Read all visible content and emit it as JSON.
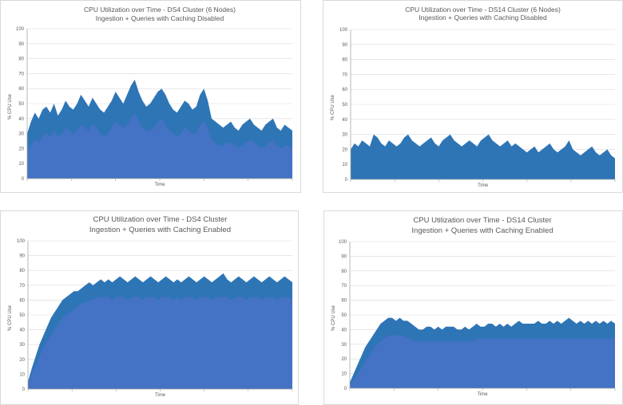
{
  "chart_data": [
    {
      "type": "area",
      "title": "CPU Utilization over Time - DS4 Cluster (6 Nodes)",
      "subtitle": "Ingestion + Queries with Caching Disabled",
      "xlabel": "Time",
      "ylabel": "% CPU Use",
      "ylim": [
        0,
        100
      ],
      "y_ticks": [
        "0",
        "10",
        "20",
        "30",
        "40",
        "50",
        "60",
        "70",
        "80",
        "90",
        "100"
      ],
      "grid": true,
      "series": [
        {
          "color": "#2e75b6",
          "values": [
            30,
            38,
            44,
            40,
            46,
            48,
            44,
            50,
            42,
            46,
            52,
            48,
            46,
            50,
            56,
            52,
            48,
            54,
            50,
            46,
            44,
            48,
            52,
            58,
            54,
            50,
            56,
            62,
            66,
            58,
            52,
            48,
            50,
            54,
            58,
            60,
            56,
            50,
            46,
            44,
            48,
            52,
            50,
            46,
            48,
            56,
            60,
            52,
            40,
            38,
            36,
            34,
            36,
            38,
            34,
            32,
            36,
            38,
            40,
            36,
            34,
            32,
            36,
            38,
            40,
            34,
            32,
            36,
            34,
            32
          ]
        },
        {
          "color": "#4472c4",
          "values": [
            18,
            22,
            26,
            24,
            28,
            30,
            28,
            32,
            28,
            30,
            34,
            32,
            30,
            32,
            36,
            34,
            32,
            36,
            34,
            30,
            28,
            30,
            34,
            38,
            36,
            34,
            36,
            40,
            44,
            38,
            34,
            32,
            32,
            34,
            38,
            40,
            36,
            32,
            30,
            28,
            30,
            34,
            32,
            30,
            30,
            36,
            38,
            34,
            26,
            24,
            22,
            22,
            24,
            24,
            22,
            20,
            22,
            24,
            26,
            24,
            22,
            20,
            22,
            24,
            26,
            22,
            20,
            22,
            22,
            20
          ]
        }
      ]
    },
    {
      "type": "area",
      "title": "CPU Utilization over Time - DS14 Cluster (6 Nodes)",
      "subtitle": "Ingestion + Queries with Caching Disabled",
      "xlabel": "Time",
      "ylabel": "% CPU Use",
      "ylim": [
        0,
        100
      ],
      "y_ticks": [
        "0",
        "10",
        "20",
        "30",
        "40",
        "50",
        "60",
        "70",
        "80",
        "90",
        "100"
      ],
      "grid": true,
      "series": [
        {
          "color": "#2e75b6",
          "values": [
            20,
            24,
            22,
            26,
            24,
            22,
            30,
            28,
            24,
            22,
            26,
            24,
            22,
            24,
            28,
            30,
            26,
            24,
            22,
            24,
            26,
            28,
            24,
            22,
            26,
            28,
            30,
            26,
            24,
            22,
            24,
            26,
            24,
            22,
            26,
            28,
            30,
            26,
            24,
            22,
            24,
            26,
            22,
            24,
            22,
            20,
            18,
            20,
            22,
            18,
            20,
            22,
            24,
            20,
            18,
            20,
            22,
            26,
            20,
            18,
            16,
            18,
            20,
            22,
            18,
            16,
            18,
            20,
            16,
            14
          ]
        }
      ]
    },
    {
      "type": "area",
      "title": "CPU Utilization over Time - DS4 Cluster",
      "subtitle": "Ingestion + Queries with Caching Enabled",
      "xlabel": "Time",
      "ylabel": "% CPU Use",
      "ylim": [
        0,
        100
      ],
      "y_ticks": [
        "0",
        "10",
        "20",
        "30",
        "40",
        "50",
        "60",
        "70",
        "80",
        "90",
        "100"
      ],
      "grid": true,
      "series": [
        {
          "color": "#2e75b6",
          "values": [
            5,
            14,
            22,
            30,
            36,
            42,
            48,
            52,
            56,
            60,
            62,
            64,
            66,
            66,
            68,
            70,
            72,
            70,
            72,
            74,
            72,
            74,
            72,
            74,
            76,
            74,
            72,
            74,
            76,
            74,
            72,
            74,
            76,
            74,
            72,
            74,
            76,
            74,
            72,
            74,
            72,
            74,
            76,
            74,
            72,
            74,
            76,
            74,
            72,
            74,
            76,
            78,
            74,
            72,
            74,
            76,
            74,
            72,
            74,
            76,
            74,
            72,
            74,
            76,
            74,
            72,
            74,
            76,
            74,
            72
          ]
        },
        {
          "color": "#4472c4",
          "values": [
            3,
            10,
            16,
            22,
            28,
            32,
            36,
            40,
            44,
            48,
            50,
            52,
            54,
            56,
            58,
            58,
            60,
            60,
            62,
            62,
            62,
            62,
            60,
            62,
            62,
            62,
            60,
            62,
            62,
            62,
            60,
            62,
            62,
            62,
            60,
            62,
            62,
            62,
            60,
            62,
            60,
            62,
            62,
            62,
            60,
            62,
            62,
            62,
            60,
            62,
            62,
            62,
            62,
            60,
            62,
            62,
            62,
            60,
            62,
            62,
            62,
            60,
            62,
            62,
            62,
            60,
            62,
            62,
            62,
            60
          ]
        }
      ]
    },
    {
      "type": "area",
      "title": "CPU Utilization over Time - DS14 Cluster",
      "subtitle": "Ingestion + Queries with Caching Enabled",
      "xlabel": "Time",
      "ylabel": "% CPU Use",
      "ylim": [
        0,
        100
      ],
      "y_ticks": [
        "0",
        "10",
        "20",
        "30",
        "40",
        "50",
        "60",
        "70",
        "80",
        "90",
        "100"
      ],
      "grid": true,
      "series": [
        {
          "color": "#2e75b6",
          "values": [
            4,
            10,
            16,
            22,
            28,
            32,
            36,
            40,
            44,
            46,
            48,
            48,
            46,
            48,
            46,
            46,
            44,
            42,
            40,
            40,
            42,
            42,
            40,
            42,
            40,
            42,
            42,
            42,
            40,
            40,
            42,
            40,
            42,
            44,
            42,
            42,
            44,
            44,
            42,
            44,
            42,
            44,
            42,
            44,
            46,
            44,
            44,
            44,
            44,
            46,
            44,
            44,
            46,
            44,
            46,
            44,
            46,
            48,
            46,
            44,
            46,
            44,
            46,
            44,
            46,
            44,
            46,
            44,
            46,
            44
          ]
        },
        {
          "color": "#4472c4",
          "values": [
            2,
            6,
            10,
            14,
            18,
            22,
            26,
            30,
            32,
            34,
            36,
            36,
            36,
            36,
            36,
            34,
            34,
            32,
            32,
            32,
            32,
            32,
            32,
            32,
            32,
            32,
            32,
            32,
            32,
            32,
            32,
            32,
            32,
            34,
            34,
            34,
            34,
            34,
            34,
            34,
            34,
            34,
            34,
            34,
            34,
            34,
            34,
            34,
            34,
            34,
            34,
            34,
            34,
            34,
            34,
            34,
            34,
            34,
            34,
            34,
            34,
            34,
            34,
            34,
            34,
            34,
            34,
            34,
            34,
            34
          ]
        }
      ]
    }
  ]
}
